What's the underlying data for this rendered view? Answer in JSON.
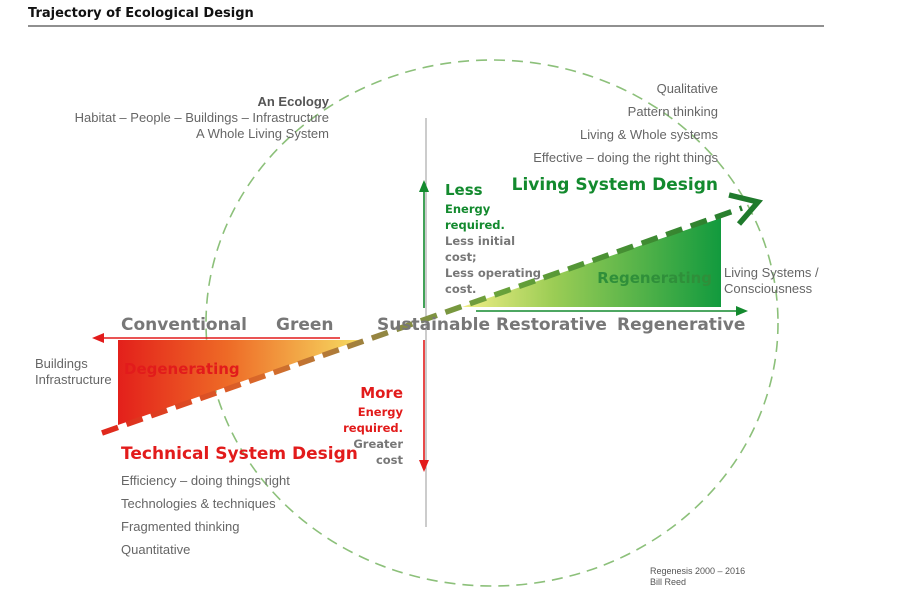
{
  "title": "Trajectory of Ecological Design",
  "ecology": {
    "heading": "An Ecology",
    "line1": "Habitat – People – Buildings – Infrastructure",
    "line2": "A Whole Living System"
  },
  "living_list": [
    "Qualitative",
    "Pattern thinking",
    "Living & Whole systems",
    "Effective – doing the right things"
  ],
  "living_heading": "Living System Design",
  "technical_heading": "Technical System Design",
  "technical_list": [
    "Efficiency – doing things right",
    "Technologies & techniques",
    "Fragmented thinking",
    "Quantitative"
  ],
  "less_block": {
    "heading": "Less",
    "line1": "Energy",
    "line2": "required.",
    "line3": "Less initial",
    "line4": "cost;",
    "line5": "Less operating",
    "line6": "cost."
  },
  "more_block": {
    "heading": "More",
    "line1": "Energy",
    "line2": "required.",
    "line3": "Greater",
    "line4": "cost"
  },
  "scale": {
    "conventional": "Conventional",
    "green": "Green",
    "sustainable": "Sustainable",
    "restorative": "Restorative",
    "regenerative": "Regenerative"
  },
  "degenerating": "Degenerating",
  "regenerating": "Regenerating",
  "buildings": {
    "line1": "Buildings",
    "line2": "Infrastructure"
  },
  "living_systems": {
    "line1": "Living Systems /",
    "line2": "Consciousness"
  },
  "credit": {
    "line1": "Regenesis 2000 – 2016",
    "line2": "Bill Reed"
  },
  "colors": {
    "green": "#138a2e",
    "red": "#e21b1b",
    "circle": "#8cc07a",
    "grey_text": "#666666"
  }
}
